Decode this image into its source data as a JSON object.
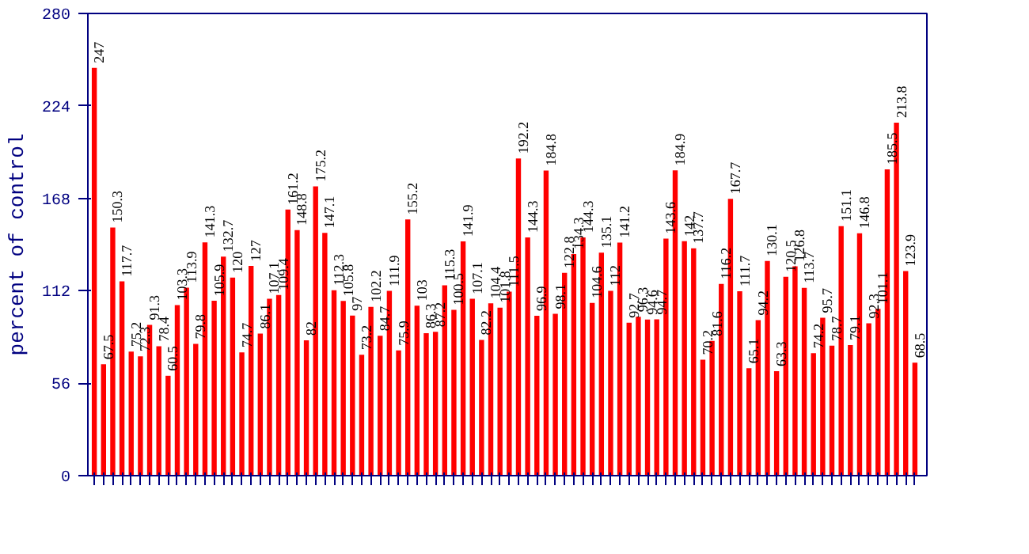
{
  "chart_data": {
    "type": "bar",
    "ylabel": "percent of control",
    "color": "#ff0000",
    "ylim": [
      0,
      280
    ],
    "yticks": [
      0,
      56,
      112,
      168,
      224,
      280
    ],
    "data_labels": true,
    "grid": false,
    "categories": [
      null,
      null,
      null,
      null,
      null,
      null,
      null,
      null,
      null,
      null,
      null,
      null,
      null,
      null,
      null,
      null,
      null,
      null,
      null,
      null,
      null,
      null,
      null,
      null,
      null,
      null,
      null,
      null,
      null,
      null,
      null,
      null,
      null,
      null,
      null,
      null,
      null,
      null,
      null,
      null,
      null,
      null,
      null,
      null,
      null,
      null,
      null,
      null,
      null,
      null,
      null,
      null,
      null,
      null,
      null,
      null,
      null,
      null,
      null,
      null,
      null,
      null,
      null,
      null,
      null,
      null,
      null,
      null,
      null,
      null,
      null,
      null,
      null,
      null,
      null,
      null,
      null,
      null,
      null,
      null,
      null,
      null,
      null,
      null,
      null,
      null,
      null,
      null,
      null,
      null
    ],
    "values": [
      247,
      67.5,
      150.3,
      117.7,
      75.2,
      72.3,
      91.3,
      78.4,
      60.5,
      103.3,
      113.9,
      79.8,
      141.3,
      105.9,
      132.7,
      120,
      74.7,
      127,
      86.1,
      107.1,
      109.4,
      161.2,
      148.8,
      82,
      175.2,
      147.1,
      112.3,
      105.8,
      97,
      73.2,
      102.2,
      84.7,
      111.9,
      75.9,
      155.2,
      103,
      86.3,
      87.2,
      115.3,
      100.5,
      141.9,
      107.1,
      82.2,
      104.4,
      101.8,
      111.5,
      192.2,
      144.3,
      96.9,
      184.8,
      98.1,
      122.8,
      134.3,
      144.3,
      104.6,
      135.1,
      112,
      141.2,
      92.7,
      96.3,
      94.6,
      94.7,
      143.6,
      184.9,
      142,
      137.7,
      70.2,
      81.6,
      116.2,
      167.7,
      111.7,
      65.1,
      94.2,
      130.1,
      63.3,
      120.5,
      126.8,
      113.7,
      74.2,
      95.7,
      78.7,
      151.1,
      79.1,
      146.8,
      92.3,
      101.1,
      185.5,
      213.8,
      123.9,
      68.5
    ]
  }
}
